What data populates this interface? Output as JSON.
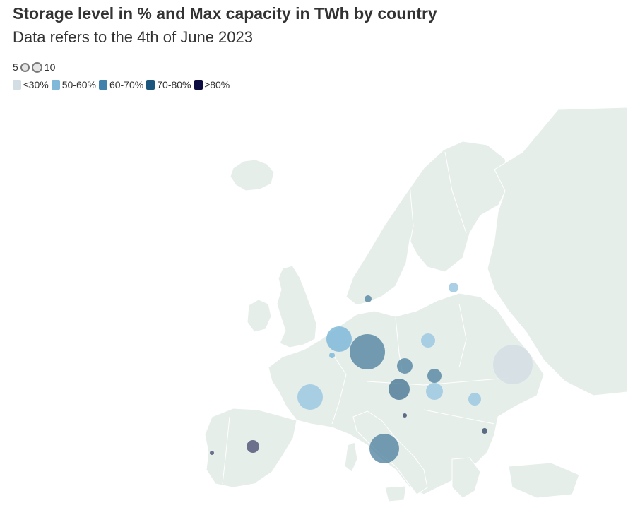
{
  "title": "Storage level in % and Max capacity in TWh by country",
  "subtitle": "Data refers to the 4th of June 2023",
  "size_legend": {
    "small_label": "5",
    "large_label": "10"
  },
  "color_legend": [
    {
      "label": "≤30%",
      "color": "#d3dde4"
    },
    {
      "label": "50-60%",
      "color": "#7fb8d9"
    },
    {
      "label": "60-70%",
      "color": "#4182ad"
    },
    {
      "label": "70-80%",
      "color": "#1d567d"
    },
    {
      "label": "≥80%",
      "color": "#0c0c40"
    }
  ],
  "colors": {
    "land": "#e6eeea",
    "border": "#ffffff",
    "background": "#ffffff"
  }
}
